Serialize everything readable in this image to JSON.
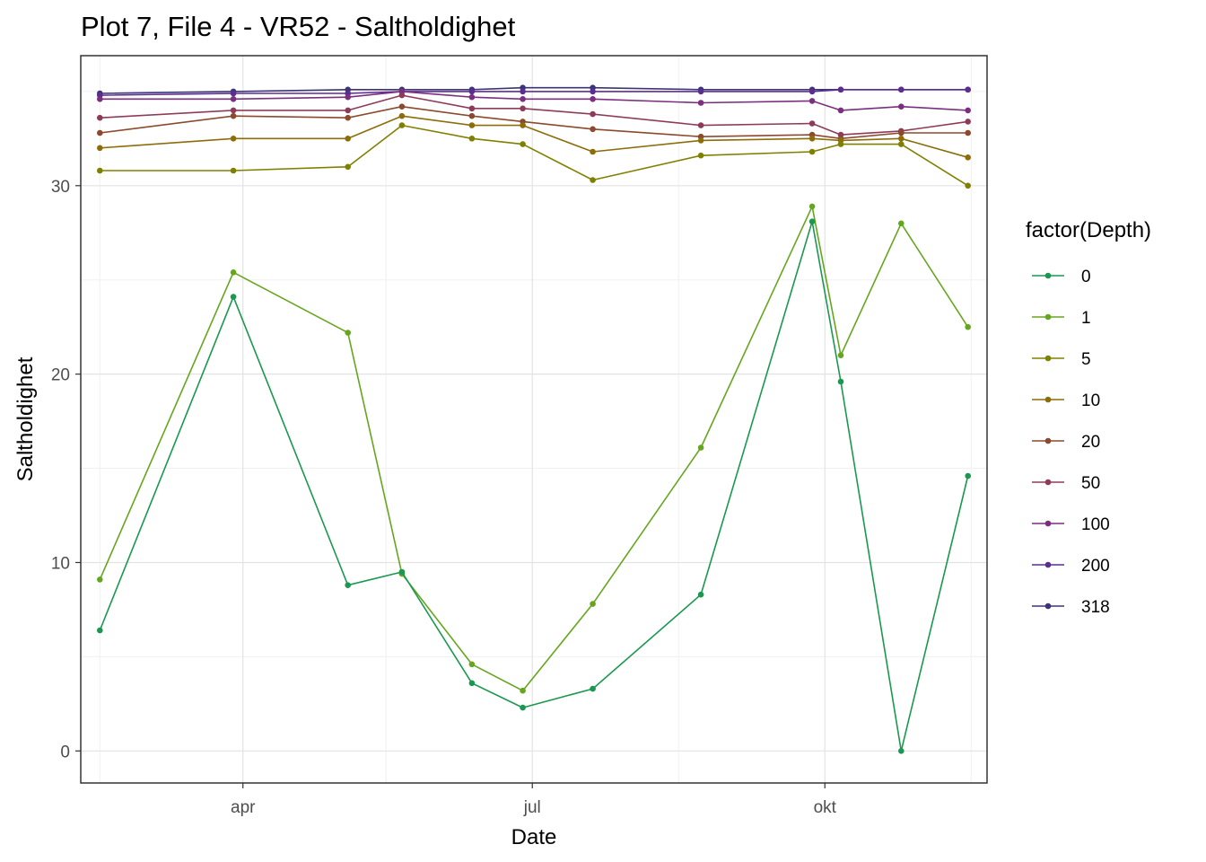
{
  "chart_data": {
    "type": "line",
    "title": "Plot 7, File 4 - VR52  -  Saltholdighet",
    "xlabel": "Date",
    "ylabel": "Saltholdighet",
    "x": [
      "2021-02-15",
      "2021-03-29",
      "2021-05-04",
      "2021-05-21",
      "2021-06-12",
      "2021-06-28",
      "2021-07-20",
      "2021-08-23",
      "2021-09-27",
      "2021-10-06",
      "2021-10-25",
      "2021-11-15"
    ],
    "x_ticks": [
      {
        "label": "apr",
        "date": "2021-04-01"
      },
      {
        "label": "jul",
        "date": "2021-07-01"
      },
      {
        "label": "okt",
        "date": "2021-10-01"
      }
    ],
    "x_minor_ticks": [
      "2021-02-15",
      "2021-05-16",
      "2021-08-16",
      "2021-11-16"
    ],
    "xlim": [
      "2021-02-09",
      "2021-11-21"
    ],
    "y_ticks": [
      0,
      10,
      20,
      30
    ],
    "ylim": [
      -1.7,
      36.9
    ],
    "grid": true,
    "legend": {
      "title": "factor(Depth)",
      "position": "right"
    },
    "series": [
      {
        "name": "0",
        "color": "#1a9850",
        "values": [
          6.4,
          24.1,
          8.8,
          9.5,
          3.6,
          2.3,
          3.3,
          8.3,
          28.1,
          19.6,
          0.0,
          14.6
        ]
      },
      {
        "name": "1",
        "color": "#66a61e",
        "values": [
          9.1,
          25.4,
          22.2,
          9.4,
          4.6,
          3.2,
          7.8,
          16.1,
          28.9,
          21.0,
          28.0,
          22.5
        ]
      },
      {
        "name": "5",
        "color": "#808000",
        "values": [
          30.8,
          30.8,
          31.0,
          33.2,
          32.5,
          32.2,
          30.3,
          31.6,
          31.8,
          32.2,
          32.2,
          30.0
        ]
      },
      {
        "name": "10",
        "color": "#8c6d0a",
        "values": [
          32.0,
          32.5,
          32.5,
          33.7,
          33.2,
          33.2,
          31.8,
          32.4,
          32.5,
          32.4,
          32.5,
          31.5
        ]
      },
      {
        "name": "20",
        "color": "#8b4a2e",
        "values": [
          32.8,
          33.7,
          33.6,
          34.2,
          33.7,
          33.4,
          33.0,
          32.6,
          32.7,
          32.5,
          32.8,
          32.8
        ]
      },
      {
        "name": "50",
        "color": "#8e3b5a",
        "values": [
          33.6,
          34.0,
          34.0,
          34.8,
          34.1,
          34.1,
          33.8,
          33.2,
          33.3,
          32.7,
          32.9,
          33.4
        ]
      },
      {
        "name": "100",
        "color": "#7b2f7f",
        "values": [
          34.6,
          34.6,
          34.7,
          35.0,
          34.7,
          34.6,
          34.6,
          34.4,
          34.5,
          34.0,
          34.2,
          34.0
        ]
      },
      {
        "name": "200",
        "color": "#5c2d91",
        "values": [
          34.8,
          34.9,
          34.9,
          35.0,
          35.0,
          35.0,
          35.0,
          35.0,
          35.0,
          35.1,
          35.1,
          35.1
        ]
      },
      {
        "name": "318",
        "color": "#3b3575",
        "values": [
          34.9,
          35.0,
          35.1,
          35.1,
          35.1,
          35.2,
          35.2,
          35.1,
          35.1,
          35.1,
          35.1,
          35.1
        ]
      }
    ]
  }
}
